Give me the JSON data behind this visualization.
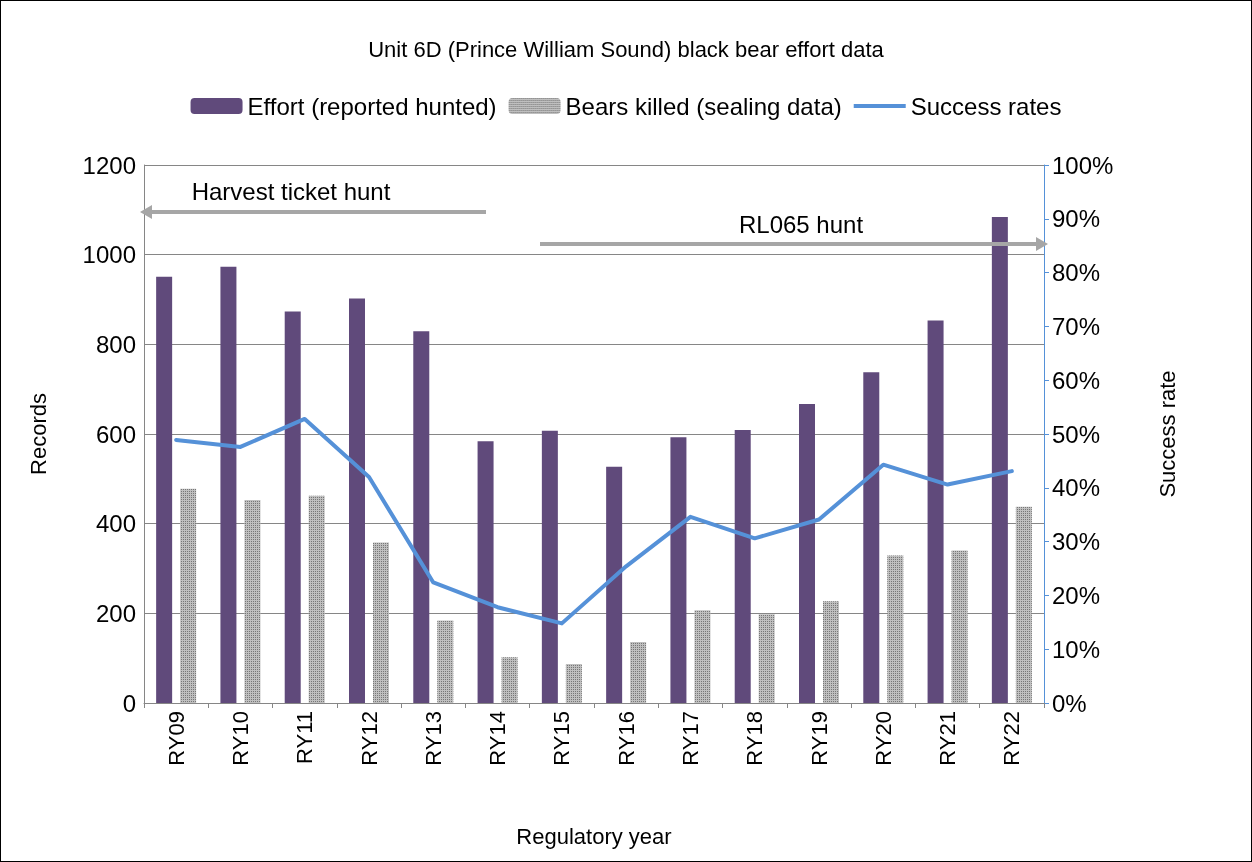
{
  "chart_data": {
    "type": "bar",
    "title": "Unit 6D (Prince William Sound) black bear effort data",
    "xlabel": "Regulatory year",
    "ylabel": "Records",
    "y2label": "Success rate",
    "categories": [
      "RY09",
      "RY10",
      "RY11",
      "RY12",
      "RY13",
      "RY14",
      "RY15",
      "RY16",
      "RY17",
      "RY18",
      "RY19",
      "RY20",
      "RY21",
      "RY22"
    ],
    "series": [
      {
        "name": "Effort (reported hunted)",
        "color": "#604a7b",
        "values": [
          951,
          973,
          873,
          902,
          829,
          584,
          607,
          527,
          593,
          609,
          667,
          738,
          853,
          1084
        ]
      },
      {
        "name": "Bears killed (sealing data)",
        "color": "#bfbfbf",
        "values": [
          478,
          453,
          462,
          358,
          184,
          102,
          87,
          136,
          207,
          198,
          227,
          329,
          340,
          438
        ]
      },
      {
        "name": "Success rates",
        "type": "line",
        "axis": "y2",
        "color": "#5591d8",
        "marker": "none",
        "values": [
          48.9,
          47.6,
          52.8,
          42.0,
          22.4,
          17.8,
          14.8,
          25.4,
          34.6,
          30.6,
          34.1,
          44.3,
          40.6,
          43.1
        ]
      }
    ],
    "ylim": [
      0,
      1200
    ],
    "yticks": [
      0,
      200,
      400,
      600,
      800,
      1000,
      1200
    ],
    "y2lim": [
      0,
      100
    ],
    "y2ticks": [
      {
        "value": 0,
        "label": "0%"
      },
      {
        "value": 10,
        "label": "10%"
      },
      {
        "value": 20,
        "label": "20%"
      },
      {
        "value": 30,
        "label": "30%"
      },
      {
        "value": 40,
        "label": "40%"
      },
      {
        "value": 50,
        "label": "50%"
      },
      {
        "value": 60,
        "label": "60%"
      },
      {
        "value": 70,
        "label": "70%"
      },
      {
        "value": 80,
        "label": "80%"
      },
      {
        "value": 90,
        "label": "90%"
      },
      {
        "value": 100,
        "label": "100%"
      }
    ],
    "grid": "y",
    "legend": "top",
    "annotations": [
      "Harvest ticket hunt",
      "RL065 hunt"
    ]
  }
}
